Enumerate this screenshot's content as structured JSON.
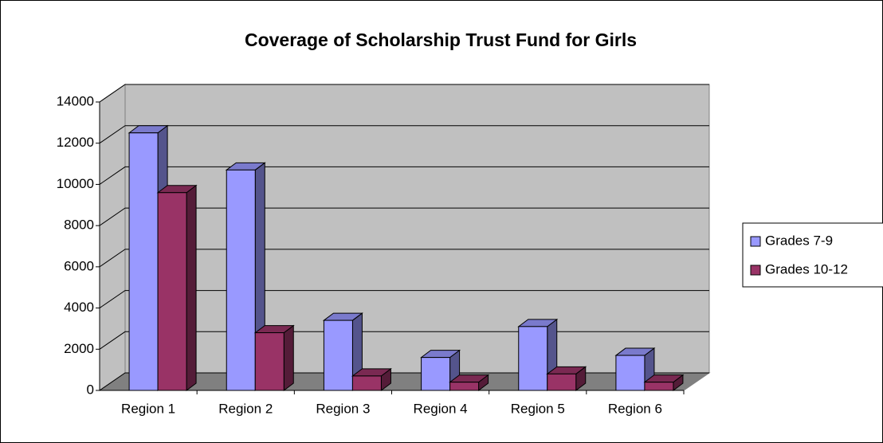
{
  "chart_data": {
    "type": "bar3d",
    "title": "Coverage of Scholarship Trust Fund for Girls",
    "categories": [
      "Region 1",
      "Region 2",
      "Region 3",
      "Region 4",
      "Region 5",
      "Region 6"
    ],
    "series": [
      {
        "name": "Grades 7-9",
        "color": "#9999ff",
        "values": [
          12500,
          10700,
          3400,
          1600,
          3100,
          1700
        ]
      },
      {
        "name": "Grades 10-12",
        "color": "#993366",
        "values": [
          9600,
          2800,
          700,
          400,
          800,
          400
        ]
      }
    ],
    "ylim": [
      0,
      14000
    ],
    "yticks": [
      0,
      2000,
      4000,
      6000,
      8000,
      10000,
      12000,
      14000
    ],
    "grid": true,
    "legend": "right"
  }
}
